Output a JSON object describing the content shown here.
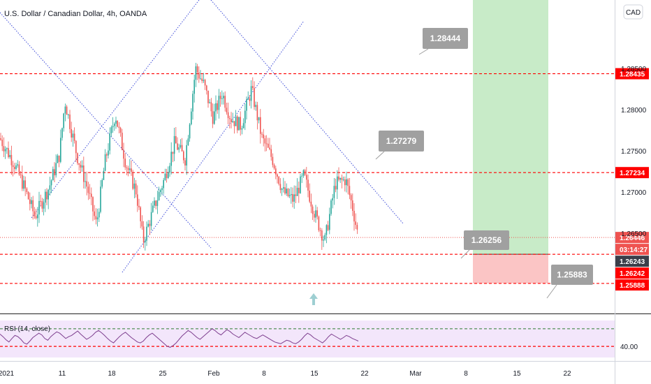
{
  "chart_data": {
    "type": "candlestick",
    "title": "U.S. Dollar / Canadian Dollar, 4h, OANDA",
    "currency_label": "CAD",
    "y_tick_labels": [
      "1.28500",
      "1.28000",
      "1.27500",
      "1.27000",
      "1.26500"
    ],
    "y_tick_values": [
      1.285,
      1.28,
      1.275,
      1.27,
      1.265
    ],
    "ylim": [
      1.2554,
      1.2933
    ],
    "x_tick_labels": [
      "2021",
      "11",
      "18",
      "25",
      "Feb",
      "8",
      "15",
      "22",
      "Mar",
      "8",
      "15",
      "22"
    ],
    "price_tags": [
      {
        "label": "1.28435",
        "value": 1.28435,
        "color": "#ff0000"
      },
      {
        "label": "1.27234",
        "value": 1.27234,
        "color": "#ff0000"
      },
      {
        "label": "1.26446",
        "value": 1.26446,
        "color": "#ef5350"
      },
      {
        "label": "03:14:27",
        "value": 1.2635,
        "color": "#ef5350"
      },
      {
        "label": "1.26243",
        "value": 1.26243,
        "color": "#3b3f4a"
      },
      {
        "label": "1.26242",
        "value": 1.26242,
        "color": "#ff0000"
      },
      {
        "label": "1.25888",
        "value": 1.25888,
        "color": "#ff0000"
      }
    ],
    "callouts": [
      {
        "label": "1.28444",
        "value": 1.28444
      },
      {
        "label": "1.27279",
        "value": 1.27279
      },
      {
        "label": "1.26256",
        "value": 1.26256
      },
      {
        "label": "1.25883",
        "value": 1.25883
      }
    ],
    "horizontal_levels": [
      1.28435,
      1.27234,
      1.26242,
      1.25888
    ],
    "last_price": 1.26446,
    "position": {
      "entry": 1.26243,
      "target": 1.2933,
      "stop": 1.25888
    },
    "series": [
      {
        "name": "USD/CAD",
        "kind": "ohlc",
        "color_up": "#26a69a",
        "color_down": "#ef5350"
      }
    ],
    "rsi": {
      "label": "RSI (14, close)",
      "tick_label": "40.00",
      "upper_band": 70,
      "lower_band": 30,
      "values": [
        58,
        52,
        45,
        40,
        48,
        55,
        52,
        46,
        38,
        35,
        42,
        50,
        55,
        60,
        56,
        48,
        44,
        52,
        58,
        63,
        60,
        54,
        48,
        52,
        55,
        60,
        65,
        58,
        52,
        46,
        50,
        55,
        62,
        66,
        61,
        55,
        48,
        42,
        38,
        45,
        52,
        58,
        62,
        56,
        50,
        45,
        40,
        38,
        42,
        50,
        56,
        60,
        54,
        48,
        42,
        36,
        30,
        28,
        32,
        38,
        46,
        54,
        60,
        66,
        62,
        56,
        50,
        46,
        52,
        58,
        64,
        70,
        66,
        60,
        56,
        62,
        68,
        64,
        58,
        54,
        50,
        56,
        62,
        58,
        54,
        50,
        48,
        52,
        56,
        52,
        48,
        44,
        40,
        38,
        36,
        40,
        44,
        42,
        38,
        36,
        40,
        46,
        54,
        60,
        56,
        50,
        46,
        42,
        38,
        44,
        52,
        58,
        54,
        50,
        46,
        50,
        55,
        52,
        48,
        45,
        42
      ]
    }
  }
}
